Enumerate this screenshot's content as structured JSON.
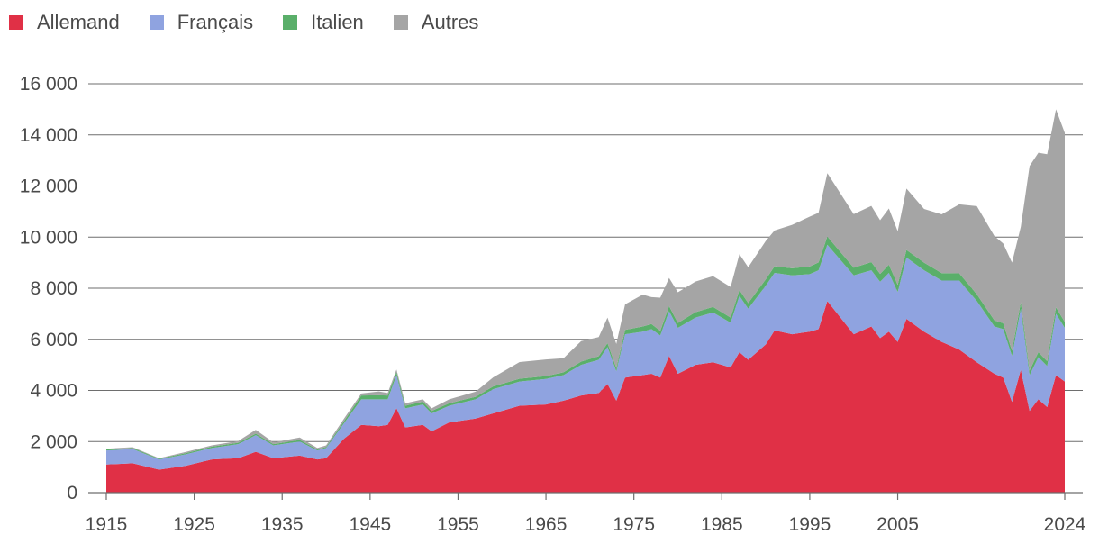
{
  "chart_data": {
    "type": "area",
    "stacked": true,
    "title": "",
    "xlabel": "",
    "ylabel": "",
    "xlim": [
      1915,
      2024
    ],
    "ylim": [
      0,
      16000
    ],
    "grid": "horizontal",
    "legend_position": "top-left",
    "y_ticks": [
      0,
      2000,
      4000,
      6000,
      8000,
      10000,
      12000,
      14000,
      16000
    ],
    "y_tick_labels": [
      "0",
      "2 000",
      "4 000",
      "6 000",
      "8 000",
      "10 000",
      "12 000",
      "14 000",
      "16 000"
    ],
    "x_ticks": [
      1915,
      1925,
      1935,
      1945,
      1955,
      1965,
      1975,
      1985,
      1995,
      2005,
      2024
    ],
    "x_tick_labels": [
      "1915",
      "1925",
      "1935",
      "1945",
      "1955",
      "1965",
      "1975",
      "1985",
      "1995",
      "2005",
      "2024"
    ],
    "x": [
      1915,
      1918,
      1921,
      1924,
      1927,
      1930,
      1932,
      1934,
      1937,
      1939,
      1940,
      1942,
      1944,
      1946,
      1947,
      1948,
      1949,
      1951,
      1952,
      1954,
      1957,
      1959,
      1962,
      1965,
      1967,
      1969,
      1971,
      1972,
      1973,
      1974,
      1976,
      1977,
      1978,
      1979,
      1980,
      1982,
      1984,
      1986,
      1987,
      1988,
      1990,
      1991,
      1993,
      1995,
      1996,
      1997,
      2000,
      2002,
      2003,
      2004,
      2005,
      2006,
      2008,
      2010,
      2012,
      2014,
      2016,
      2017,
      2018,
      2019,
      2020,
      2021,
      2022,
      2023,
      2024
    ],
    "series": [
      {
        "name": "Allemand",
        "color": "#e03046",
        "values": [
          1100,
          1150,
          900,
          1050,
          1300,
          1350,
          1600,
          1350,
          1450,
          1300,
          1350,
          2100,
          2650,
          2600,
          2650,
          3300,
          2550,
          2650,
          2400,
          2750,
          2900,
          3100,
          3400,
          3450,
          3600,
          3800,
          3900,
          4250,
          3600,
          4500,
          4600,
          4650,
          4500,
          5350,
          4650,
          5000,
          5100,
          4900,
          5500,
          5200,
          5800,
          6350,
          6200,
          6300,
          6400,
          7500,
          6200,
          6500,
          6050,
          6300,
          5900,
          6800,
          6300,
          5900,
          5600,
          5100,
          4650,
          4500,
          3550,
          4800,
          3200,
          3650,
          3350,
          4600,
          4350
        ]
      },
      {
        "name": "Français",
        "color": "#8fa3e0",
        "values": [
          550,
          560,
          400,
          450,
          450,
          550,
          650,
          500,
          550,
          350,
          400,
          600,
          1000,
          1050,
          1000,
          1300,
          750,
          800,
          700,
          650,
          750,
          950,
          950,
          1000,
          1000,
          1200,
          1300,
          1450,
          1150,
          1700,
          1700,
          1750,
          1650,
          1750,
          1800,
          1850,
          1950,
          1750,
          2200,
          2000,
          2300,
          2250,
          2300,
          2250,
          2300,
          2200,
          2300,
          2200,
          2200,
          2300,
          1950,
          2400,
          2400,
          2400,
          2700,
          2400,
          1850,
          1900,
          1800,
          2400,
          1400,
          1650,
          1600,
          2400,
          2100
        ]
      },
      {
        "name": "Italien",
        "color": "#5aaf6a",
        "values": [
          40,
          40,
          30,
          40,
          50,
          50,
          60,
          50,
          60,
          40,
          40,
          80,
          150,
          160,
          150,
          120,
          100,
          110,
          100,
          100,
          100,
          110,
          110,
          110,
          110,
          130,
          140,
          150,
          120,
          170,
          200,
          200,
          180,
          200,
          190,
          210,
          220,
          200,
          230,
          220,
          250,
          260,
          280,
          300,
          310,
          320,
          300,
          320,
          310,
          320,
          280,
          300,
          300,
          290,
          280,
          260,
          240,
          230,
          200,
          250,
          180,
          200,
          190,
          250,
          230
        ]
      },
      {
        "name": "Autres",
        "color": "#a5a5a5",
        "values": [
          30,
          30,
          20,
          50,
          50,
          70,
          150,
          70,
          100,
          60,
          60,
          100,
          80,
          150,
          100,
          100,
          100,
          90,
          100,
          150,
          200,
          350,
          650,
          650,
          550,
          800,
          750,
          1000,
          950,
          1000,
          1250,
          1050,
          1300,
          1100,
          1200,
          1200,
          1200,
          1200,
          1400,
          1400,
          1500,
          1400,
          1700,
          1950,
          1940,
          2480,
          2100,
          2200,
          2100,
          2200,
          2100,
          2400,
          2100,
          2300,
          2700,
          3450,
          3300,
          3120,
          3450,
          2950,
          8000,
          7800,
          8100,
          7750,
          7400
        ]
      }
    ]
  }
}
